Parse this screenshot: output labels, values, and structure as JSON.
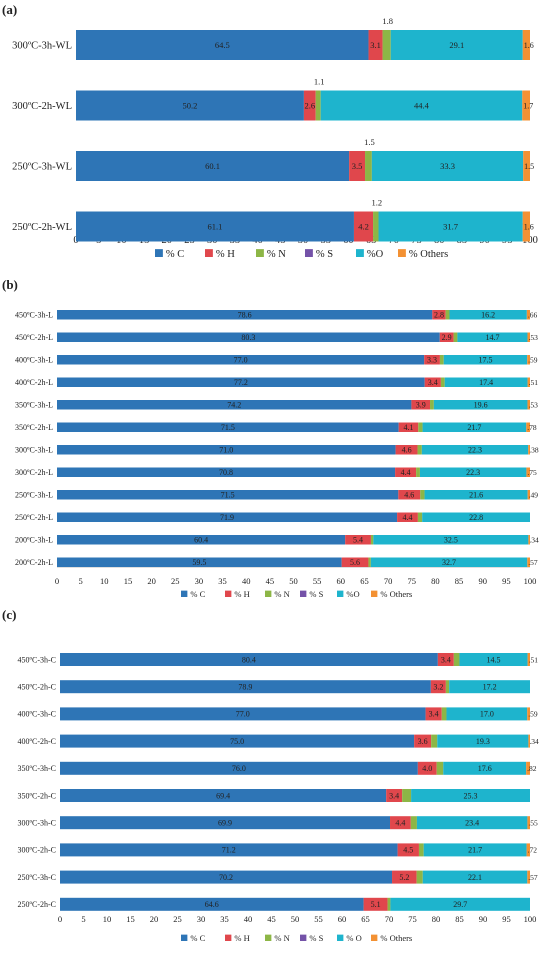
{
  "chart_data": [
    {
      "type": "bar",
      "stacked": "horizontal-100",
      "panel_label": "(a)",
      "categories": [
        "300ºC-3h-WL",
        "300ºC-2h-WL",
        "250ºC-3h-WL",
        "250ºC-2h-WL"
      ],
      "series": [
        {
          "name": "% C",
          "values": [
            64.5,
            50.2,
            60.1,
            61.1
          ]
        },
        {
          "name": "% H",
          "values": [
            3.1,
            2.6,
            3.5,
            4.2
          ]
        },
        {
          "name": "% N",
          "values": [
            1.8,
            1.1,
            1.5,
            1.2
          ]
        },
        {
          "name": "% S",
          "values": [
            0,
            0,
            0,
            0
          ]
        },
        {
          "name": "%O",
          "values": [
            29.1,
            44.4,
            33.3,
            31.7
          ]
        },
        {
          "name": "% Others",
          "values": [
            1.6,
            1.7,
            1.5,
            1.6
          ]
        }
      ],
      "labels": [
        {
          "C": "64.5",
          "H": "3.1",
          "N": "1.8",
          "O": "29.1",
          "Others": "1.6"
        },
        {
          "C": "50.2",
          "H": "2.6",
          "N": "1.1",
          "O": "44.4",
          "Others": "1.7"
        },
        {
          "C": "60.1",
          "H": "3.5",
          "N": "1.5",
          "O": "33.3",
          "Others": "1.5"
        },
        {
          "C": "61.1",
          "H": "4.2",
          "N": "1.2",
          "O": "31.7",
          "Others": "1.6"
        }
      ],
      "xlim": [
        0,
        100
      ],
      "xticks": [
        "0",
        "5",
        "10",
        "15",
        "20",
        "25",
        "30",
        "35",
        "40",
        "45",
        "50",
        "55",
        "60",
        "65",
        "70",
        "75",
        "80",
        "85",
        "90",
        "95",
        "100"
      ],
      "legend": [
        "% C",
        "% H",
        "% N",
        "% S",
        "%O",
        "% Others"
      ],
      "legend_position": "bottom"
    },
    {
      "type": "bar",
      "stacked": "horizontal-100",
      "panel_label": "(b)",
      "categories": [
        "450ºC-3h-L",
        "450ºC-2h-L",
        "400ºC-3h-L",
        "400ºC-2h-L",
        "350ºC-3h-L",
        "350ºC-2h-L",
        "300ºC-3h-L",
        "300ºC-2h-L",
        "250ºC-3h-L",
        "250ºC-2h-L",
        "200ºC-3h-L",
        "200ºC-2h-L"
      ],
      "series": [
        {
          "name": "% C",
          "values": [
            78.6,
            80.3,
            77.0,
            77.2,
            74.2,
            71.5,
            71.0,
            70.8,
            71.5,
            71.9,
            60.4,
            59.5
          ]
        },
        {
          "name": "% H",
          "values": [
            2.8,
            2.9,
            3.3,
            3.4,
            3.9,
            4.1,
            4.6,
            4.4,
            4.6,
            4.4,
            5.4,
            5.6
          ]
        },
        {
          "name": "% N",
          "values": [
            0.8,
            0.8,
            0.8,
            0.8,
            0.8,
            0.9,
            0.9,
            0.8,
            0.9,
            0.9,
            0.5,
            0.5
          ]
        },
        {
          "name": "% S",
          "values": [
            0,
            0,
            0,
            0,
            0,
            0,
            0,
            0,
            0,
            0,
            0,
            0
          ]
        },
        {
          "name": "%O",
          "values": [
            16.2,
            14.7,
            17.5,
            17.4,
            19.6,
            21.7,
            22.3,
            22.3,
            21.6,
            22.8,
            32.5,
            32.7
          ]
        },
        {
          "name": "% Others",
          "values": [
            0.66,
            0.53,
            0.59,
            0.51,
            0.53,
            0.78,
            0.38,
            0.75,
            0.49,
            0,
            0.34,
            0.57
          ]
        }
      ],
      "labels": [
        {
          "C": "78.6",
          "H": "2.8",
          "O": "16.2",
          "Others": ".66"
        },
        {
          "C": "80.3",
          "H": "2.9",
          "O": "14.7",
          "Others": ".53"
        },
        {
          "C": "77.0",
          "H": "3.3",
          "O": "17.5",
          "Others": ".59"
        },
        {
          "C": "77.2",
          "H": "3.4",
          "O": "17.4",
          "Others": ".51"
        },
        {
          "C": "74.2",
          "H": "3.9",
          "O": "19.6",
          "Others": ".53"
        },
        {
          "C": "71.5",
          "H": "4.1",
          "O": "21.7",
          "Others": ".78"
        },
        {
          "C": "71.0",
          "H": "4.6",
          "O": "22.3",
          "Others": ".38"
        },
        {
          "C": "70.8",
          "H": "4.4",
          "O": "22.3",
          "Others": ".75"
        },
        {
          "C": "71.5",
          "H": "4.6",
          "O": "21.6",
          "Others": ".49"
        },
        {
          "C": "71.9",
          "H": "4.4",
          "O": "22.8",
          "Others": ""
        },
        {
          "C": "60.4",
          "H": "5.4",
          "O": "32.5",
          "Others": ".34"
        },
        {
          "C": "59.5",
          "H": "5.6",
          "O": "32.7",
          "Others": ".57"
        }
      ],
      "xlim": [
        0,
        100
      ],
      "xticks": [
        "0",
        "5",
        "10",
        "15",
        "20",
        "25",
        "30",
        "35",
        "40",
        "45",
        "50",
        "55",
        "60",
        "65",
        "70",
        "75",
        "80",
        "85",
        "90",
        "95",
        "100"
      ],
      "legend": [
        "% C",
        "% H",
        "% N",
        "% S",
        "%O",
        "% Others"
      ],
      "legend_position": "bottom"
    },
    {
      "type": "bar",
      "stacked": "horizontal-100",
      "panel_label": "(c)",
      "categories": [
        "450ºC-3h-C",
        "450ºC-2h-C",
        "400ºC-3h-C",
        "400ºC-2h-C",
        "350ºC-3h-C",
        "350ºC-2h-C",
        "300ºC-3h-C",
        "300ºC-2h-C",
        "250ºC-3h-C",
        "250ºC-2h-C"
      ],
      "series": [
        {
          "name": "% C",
          "values": [
            80.4,
            78.9,
            77.0,
            75.0,
            76.0,
            69.4,
            69.9,
            71.2,
            70.2,
            64.6
          ]
        },
        {
          "name": "% H",
          "values": [
            3.4,
            3.2,
            3.4,
            3.6,
            4.0,
            3.4,
            4.4,
            4.5,
            5.2,
            5.1
          ]
        },
        {
          "name": "% N",
          "values": [
            1.2,
            0.7,
            1.0,
            1.3,
            1.4,
            1.9,
            1.3,
            1.0,
            1.3,
            0.6
          ]
        },
        {
          "name": "% S",
          "values": [
            0,
            0,
            0,
            0,
            0,
            0,
            0,
            0,
            0,
            0
          ]
        },
        {
          "name": "%O",
          "values": [
            14.5,
            17.2,
            17.0,
            19.3,
            17.6,
            25.3,
            23.4,
            21.7,
            22.1,
            29.7
          ]
        },
        {
          "name": "% Others",
          "values": [
            0.51,
            0,
            0.59,
            0.34,
            0.82,
            0,
            0.55,
            0.72,
            0.57,
            0
          ]
        }
      ],
      "labels": [
        {
          "C": "80.4",
          "H": "3.4",
          "O": "14.5",
          "Others": ".51"
        },
        {
          "C": "78.9",
          "H": "3.2",
          "O": "17.2",
          "Others": ""
        },
        {
          "C": "77.0",
          "H": "3.4",
          "O": "17.0",
          "Others": ".59"
        },
        {
          "C": "75.0",
          "H": "3.6",
          "O": "19.3",
          "Others": ".34"
        },
        {
          "C": "76.0",
          "H": "4.0",
          "O": "17.6",
          "Others": ".82"
        },
        {
          "C": "69.4",
          "H": "3.4",
          "O": "25.3",
          "Others": ""
        },
        {
          "C": "69.9",
          "H": "4.4",
          "O": "23.4",
          "Others": ".55"
        },
        {
          "C": "71.2",
          "H": "4.5",
          "O": "21.7",
          "Others": ".72"
        },
        {
          "C": "70.2",
          "H": "5.2",
          "O": "22.1",
          "Others": ".57"
        },
        {
          "C": "64.6",
          "H": "5.1",
          "O": "29.7",
          "Others": ""
        }
      ],
      "xlim": [
        0,
        100
      ],
      "xticks": [
        "0",
        "5",
        "10",
        "15",
        "20",
        "25",
        "30",
        "35",
        "40",
        "45",
        "50",
        "55",
        "60",
        "65",
        "70",
        "75",
        "80",
        "85",
        "90",
        "95",
        "100"
      ],
      "legend": [
        "% C",
        "% H",
        "% N",
        "% S",
        "% O",
        "% Others"
      ],
      "legend_position": "bottom"
    }
  ],
  "colors": {
    "C": "#2e75b6",
    "H": "#e0474c",
    "N": "#8db646",
    "S": "#7452a8",
    "O": "#1eb4cd",
    "Others": "#f39133"
  }
}
